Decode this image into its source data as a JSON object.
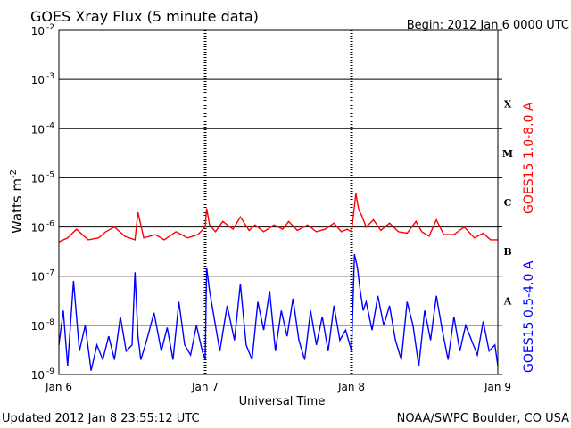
{
  "header": {
    "title": "GOES Xray Flux (5 minute data)",
    "begin": "Begin:  2012 Jan 6 0000 UTC"
  },
  "footer": {
    "updated": "Updated 2012 Jan  8 23:55:12 UTC",
    "credit": "NOAA/SWPC Boulder, CO USA"
  },
  "chart_data": {
    "type": "line",
    "xlabel": "Universal Time",
    "ylabel_base": "Watts m",
    "ylabel_sup": "-2",
    "x_unit": "days since 2012 Jan 6 0000 UTC",
    "xlim": [
      0,
      3
    ],
    "ylim_log10": [
      -9,
      -2
    ],
    "y_scale": "log",
    "x_ticks": [
      {
        "value": 0,
        "label": "Jan 6"
      },
      {
        "value": 1,
        "label": "Jan 7"
      },
      {
        "value": 2,
        "label": "Jan 8"
      },
      {
        "value": 3,
        "label": "Jan 9"
      }
    ],
    "y_ticks": [
      {
        "exp": -2,
        "label": "10",
        "sup": "-2"
      },
      {
        "exp": -3,
        "label": "10",
        "sup": "-3"
      },
      {
        "exp": -4,
        "label": "10",
        "sup": "-4"
      },
      {
        "exp": -5,
        "label": "10",
        "sup": "-5"
      },
      {
        "exp": -6,
        "label": "10",
        "sup": "-6"
      },
      {
        "exp": -7,
        "label": "10",
        "sup": "-7"
      },
      {
        "exp": -8,
        "label": "10",
        "sup": "-8"
      },
      {
        "exp": -9,
        "label": "10",
        "sup": "-9"
      }
    ],
    "flare_classes": [
      {
        "label": "X",
        "exp": -3.5
      },
      {
        "label": "M",
        "exp": -4.5
      },
      {
        "label": "C",
        "exp": -5.5
      },
      {
        "label": "B",
        "exp": -6.5
      },
      {
        "label": "A",
        "exp": -7.5
      }
    ],
    "grid": true,
    "series": [
      {
        "name": "GOES15 1.0-8.0 A",
        "color": "#ff0000",
        "x": [
          0,
          0.06,
          0.12,
          0.2,
          0.27,
          0.32,
          0.38,
          0.45,
          0.52,
          0.54,
          0.58,
          0.66,
          0.72,
          0.8,
          0.88,
          0.95,
          1.0,
          1.01,
          1.03,
          1.07,
          1.12,
          1.19,
          1.24,
          1.3,
          1.34,
          1.4,
          1.47,
          1.53,
          1.57,
          1.63,
          1.7,
          1.76,
          1.82,
          1.88,
          1.93,
          1.97,
          2.0,
          2.03,
          2.05,
          2.07,
          2.1,
          2.15,
          2.2,
          2.26,
          2.32,
          2.38,
          2.44,
          2.48,
          2.53,
          2.58,
          2.63,
          2.7,
          2.77,
          2.84,
          2.9,
          2.95,
          3.0
        ],
        "y": [
          5e-07,
          6e-07,
          9e-07,
          5.5e-07,
          6e-07,
          8e-07,
          1e-06,
          6.5e-07,
          5.5e-07,
          2e-06,
          6e-07,
          7e-07,
          5.5e-07,
          8e-07,
          6e-07,
          7e-07,
          1e-06,
          2.4e-06,
          1.1e-06,
          8e-07,
          1.3e-06,
          9e-07,
          1.6e-06,
          8.5e-07,
          1.1e-06,
          8e-07,
          1.1e-06,
          9e-07,
          1.3e-06,
          8.5e-07,
          1.1e-06,
          8e-07,
          9e-07,
          1.2e-06,
          8e-07,
          9e-07,
          8e-07,
          4.8e-06,
          2.2e-06,
          1.7e-06,
          1e-06,
          1.4e-06,
          8.5e-07,
          1.2e-06,
          8e-07,
          7.5e-07,
          1.3e-06,
          8e-07,
          6.5e-07,
          1.4e-06,
          7e-07,
          7e-07,
          1e-06,
          6e-07,
          7.5e-07,
          5.5e-07,
          5.5e-07
        ]
      },
      {
        "name": "GOES15 0.5-4.0 A",
        "color": "#0000ff",
        "x": [
          0,
          0.03,
          0.06,
          0.1,
          0.14,
          0.18,
          0.22,
          0.26,
          0.3,
          0.34,
          0.38,
          0.42,
          0.46,
          0.5,
          0.52,
          0.54,
          0.56,
          0.6,
          0.65,
          0.7,
          0.74,
          0.78,
          0.82,
          0.86,
          0.9,
          0.94,
          0.98,
          1.0,
          1.01,
          1.03,
          1.06,
          1.1,
          1.15,
          1.2,
          1.24,
          1.28,
          1.32,
          1.36,
          1.4,
          1.44,
          1.48,
          1.52,
          1.56,
          1.6,
          1.64,
          1.68,
          1.72,
          1.76,
          1.8,
          1.84,
          1.88,
          1.92,
          1.96,
          2.0,
          2.02,
          2.04,
          2.06,
          2.08,
          2.1,
          2.14,
          2.18,
          2.22,
          2.26,
          2.3,
          2.34,
          2.38,
          2.42,
          2.46,
          2.5,
          2.54,
          2.58,
          2.62,
          2.66,
          2.7,
          2.74,
          2.78,
          2.82,
          2.86,
          2.9,
          2.94,
          2.98,
          3.0
        ],
        "y": [
          4e-09,
          2e-08,
          1.5e-09,
          8e-08,
          3e-09,
          1e-08,
          1.2e-09,
          4e-09,
          2e-09,
          6e-09,
          2e-09,
          1.5e-08,
          3e-09,
          4e-09,
          1.2e-07,
          6e-09,
          2e-09,
          5e-09,
          1.8e-08,
          3e-09,
          9e-09,
          2e-09,
          3e-08,
          4e-09,
          2.5e-09,
          1e-08,
          3e-09,
          2e-09,
          1.5e-07,
          5e-08,
          1.5e-08,
          3e-09,
          2.5e-08,
          5e-09,
          7e-08,
          4e-09,
          2e-09,
          3e-08,
          8e-09,
          5e-08,
          3e-09,
          2e-08,
          6e-09,
          3.5e-08,
          5e-09,
          2e-09,
          2e-08,
          4e-09,
          1.5e-08,
          3e-09,
          2.5e-08,
          5e-09,
          8e-09,
          3e-09,
          2.8e-07,
          1.5e-07,
          5e-08,
          2e-08,
          3e-08,
          8e-09,
          4e-08,
          1e-08,
          2.5e-08,
          5e-09,
          2e-09,
          3e-08,
          1e-08,
          1.5e-09,
          2e-08,
          5e-09,
          4e-08,
          8e-09,
          2e-09,
          1.5e-08,
          3e-09,
          1e-08,
          5e-09,
          2.5e-09,
          1.2e-08,
          3e-09,
          4e-09,
          1.5e-09
        ]
      }
    ]
  }
}
